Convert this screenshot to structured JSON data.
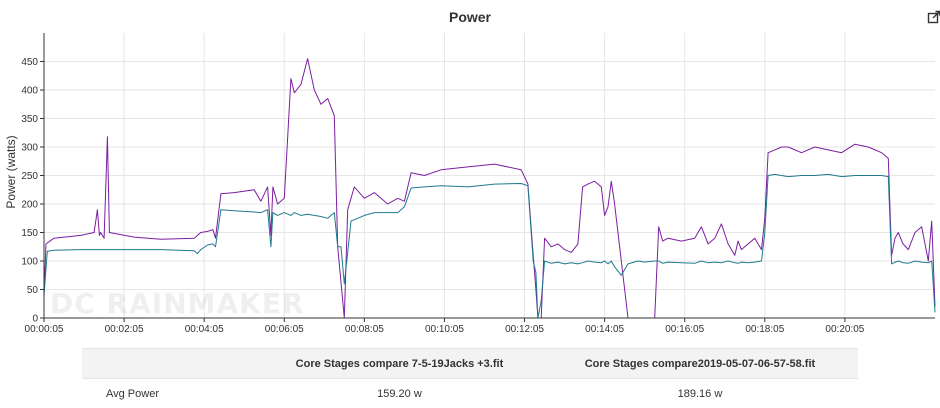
{
  "title": "Power",
  "export_icon": "external-edit-icon",
  "watermark": "DC RAINMAKER",
  "colors": {
    "series_a": "#7a1fa0",
    "series_b": "#1f7a8c",
    "grid": "#e6e6e6"
  },
  "chart_data": {
    "type": "line",
    "title": "Power",
    "ylabel": "Power (watts)",
    "xlabel": "",
    "x_unit": "seconds",
    "ylim": [
      0,
      500
    ],
    "xlim": [
      5,
      1340
    ],
    "yticks": [
      0,
      50,
      100,
      150,
      200,
      250,
      300,
      350,
      400,
      450
    ],
    "xticks": [
      {
        "t": 5,
        "label": "00:00:05"
      },
      {
        "t": 125,
        "label": "00:02:05"
      },
      {
        "t": 245,
        "label": "00:04:05"
      },
      {
        "t": 365,
        "label": "00:06:05"
      },
      {
        "t": 485,
        "label": "00:08:05"
      },
      {
        "t": 605,
        "label": "00:10:05"
      },
      {
        "t": 725,
        "label": "00:12:05"
      },
      {
        "t": 845,
        "label": "00:14:05"
      },
      {
        "t": 965,
        "label": "00:16:05"
      },
      {
        "t": 1085,
        "label": "00:18:05"
      },
      {
        "t": 1205,
        "label": "00:20:05"
      }
    ],
    "grid": true,
    "legend": "none",
    "series": [
      {
        "color": "#7a1fa0",
        "points": [
          [
            5,
            40
          ],
          [
            8,
            130
          ],
          [
            20,
            140
          ],
          [
            60,
            145
          ],
          [
            80,
            150
          ],
          [
            85,
            190
          ],
          [
            88,
            145
          ],
          [
            90,
            150
          ],
          [
            95,
            140
          ],
          [
            100,
            318
          ],
          [
            103,
            150
          ],
          [
            140,
            142
          ],
          [
            180,
            138
          ],
          [
            230,
            140
          ],
          [
            240,
            150
          ],
          [
            250,
            152
          ],
          [
            258,
            155
          ],
          [
            262,
            140
          ],
          [
            270,
            218
          ],
          [
            290,
            220
          ],
          [
            320,
            225
          ],
          [
            330,
            205
          ],
          [
            340,
            230
          ],
          [
            345,
            145
          ],
          [
            348,
            230
          ],
          [
            355,
            200
          ],
          [
            365,
            210
          ],
          [
            375,
            420
          ],
          [
            380,
            395
          ],
          [
            390,
            410
          ],
          [
            400,
            455
          ],
          [
            410,
            400
          ],
          [
            420,
            375
          ],
          [
            430,
            385
          ],
          [
            440,
            355
          ],
          [
            445,
            125
          ],
          [
            455,
            0
          ],
          [
            460,
            190
          ],
          [
            470,
            230
          ],
          [
            485,
            210
          ],
          [
            500,
            220
          ],
          [
            520,
            200
          ],
          [
            535,
            210
          ],
          [
            545,
            205
          ],
          [
            555,
            255
          ],
          [
            575,
            250
          ],
          [
            600,
            260
          ],
          [
            640,
            265
          ],
          [
            680,
            270
          ],
          [
            720,
            260
          ],
          [
            730,
            235
          ],
          [
            738,
            110
          ],
          [
            742,
            50
          ],
          [
            745,
            0
          ],
          [
            750,
            0
          ],
          [
            755,
            140
          ],
          [
            765,
            125
          ],
          [
            775,
            130
          ],
          [
            785,
            120
          ],
          [
            795,
            115
          ],
          [
            805,
            130
          ],
          [
            812,
            230
          ],
          [
            820,
            235
          ],
          [
            830,
            240
          ],
          [
            840,
            230
          ],
          [
            845,
            180
          ],
          [
            850,
            195
          ],
          [
            855,
            240
          ],
          [
            860,
            200
          ],
          [
            870,
            100
          ],
          [
            880,
            0
          ],
          [
            895,
            0
          ],
          [
            905,
            0
          ],
          [
            920,
            0
          ],
          [
            926,
            160
          ],
          [
            932,
            135
          ],
          [
            940,
            140
          ],
          [
            960,
            135
          ],
          [
            980,
            140
          ],
          [
            990,
            160
          ],
          [
            1000,
            130
          ],
          [
            1010,
            140
          ],
          [
            1020,
            165
          ],
          [
            1030,
            130
          ],
          [
            1040,
            110
          ],
          [
            1045,
            135
          ],
          [
            1050,
            120
          ],
          [
            1060,
            130
          ],
          [
            1070,
            140
          ],
          [
            1080,
            120
          ],
          [
            1085,
            175
          ],
          [
            1090,
            290
          ],
          [
            1100,
            295
          ],
          [
            1110,
            300
          ],
          [
            1120,
            300
          ],
          [
            1140,
            290
          ],
          [
            1160,
            300
          ],
          [
            1180,
            295
          ],
          [
            1200,
            290
          ],
          [
            1220,
            305
          ],
          [
            1240,
            300
          ],
          [
            1260,
            290
          ],
          [
            1270,
            280
          ],
          [
            1275,
            110
          ],
          [
            1280,
            140
          ],
          [
            1285,
            150
          ],
          [
            1292,
            130
          ],
          [
            1300,
            120
          ],
          [
            1310,
            150
          ],
          [
            1320,
            160
          ],
          [
            1330,
            100
          ],
          [
            1335,
            170
          ],
          [
            1340,
            20
          ]
        ]
      },
      {
        "color": "#1f7a8c",
        "points": [
          [
            5,
            40
          ],
          [
            10,
            117
          ],
          [
            20,
            119
          ],
          [
            60,
            120
          ],
          [
            100,
            120
          ],
          [
            140,
            120
          ],
          [
            180,
            120
          ],
          [
            230,
            118
          ],
          [
            235,
            113
          ],
          [
            240,
            120
          ],
          [
            250,
            128
          ],
          [
            258,
            130
          ],
          [
            262,
            125
          ],
          [
            270,
            190
          ],
          [
            290,
            188
          ],
          [
            320,
            186
          ],
          [
            330,
            185
          ],
          [
            340,
            190
          ],
          [
            345,
            125
          ],
          [
            348,
            185
          ],
          [
            355,
            180
          ],
          [
            365,
            185
          ],
          [
            375,
            180
          ],
          [
            380,
            185
          ],
          [
            390,
            180
          ],
          [
            400,
            182
          ],
          [
            410,
            180
          ],
          [
            420,
            178
          ],
          [
            430,
            175
          ],
          [
            440,
            185
          ],
          [
            445,
            125
          ],
          [
            450,
            125
          ],
          [
            455,
            60
          ],
          [
            460,
            115
          ],
          [
            465,
            170
          ],
          [
            475,
            175
          ],
          [
            485,
            180
          ],
          [
            500,
            185
          ],
          [
            520,
            185
          ],
          [
            535,
            185
          ],
          [
            545,
            195
          ],
          [
            555,
            228
          ],
          [
            575,
            230
          ],
          [
            600,
            232
          ],
          [
            640,
            230
          ],
          [
            680,
            235
          ],
          [
            720,
            236
          ],
          [
            730,
            232
          ],
          [
            738,
            100
          ],
          [
            742,
            80
          ],
          [
            745,
            0
          ],
          [
            750,
            30
          ],
          [
            755,
            100
          ],
          [
            765,
            96
          ],
          [
            775,
            98
          ],
          [
            785,
            95
          ],
          [
            795,
            97
          ],
          [
            805,
            95
          ],
          [
            812,
            97
          ],
          [
            820,
            100
          ],
          [
            830,
            98
          ],
          [
            840,
            97
          ],
          [
            845,
            100
          ],
          [
            850,
            95
          ],
          [
            855,
            100
          ],
          [
            860,
            90
          ],
          [
            870,
            75
          ],
          [
            880,
            95
          ],
          [
            895,
            100
          ],
          [
            905,
            98
          ],
          [
            920,
            100
          ],
          [
            926,
            100
          ],
          [
            932,
            96
          ],
          [
            940,
            98
          ],
          [
            960,
            97
          ],
          [
            980,
            96
          ],
          [
            990,
            100
          ],
          [
            1000,
            97
          ],
          [
            1010,
            98
          ],
          [
            1020,
            97
          ],
          [
            1030,
            100
          ],
          [
            1040,
            97
          ],
          [
            1045,
            96
          ],
          [
            1050,
            98
          ],
          [
            1060,
            97
          ],
          [
            1070,
            98
          ],
          [
            1080,
            100
          ],
          [
            1085,
            150
          ],
          [
            1090,
            250
          ],
          [
            1100,
            252
          ],
          [
            1110,
            250
          ],
          [
            1120,
            248
          ],
          [
            1140,
            250
          ],
          [
            1160,
            250
          ],
          [
            1180,
            252
          ],
          [
            1200,
            248
          ],
          [
            1220,
            250
          ],
          [
            1240,
            250
          ],
          [
            1260,
            250
          ],
          [
            1270,
            248
          ],
          [
            1275,
            95
          ],
          [
            1280,
            98
          ],
          [
            1285,
            100
          ],
          [
            1292,
            97
          ],
          [
            1300,
            96
          ],
          [
            1310,
            100
          ],
          [
            1320,
            98
          ],
          [
            1330,
            97
          ],
          [
            1335,
            100
          ],
          [
            1340,
            10
          ]
        ]
      }
    ]
  },
  "summary_table": {
    "headers": [
      "",
      "Core Stages compare 7-5-19Jacks +3.fit",
      "Core Stages compare2019-05-07-06-57-58.fit"
    ],
    "rows": [
      {
        "label": "Avg Power",
        "a": "159.20 w",
        "b": "189.16 w"
      }
    ]
  }
}
